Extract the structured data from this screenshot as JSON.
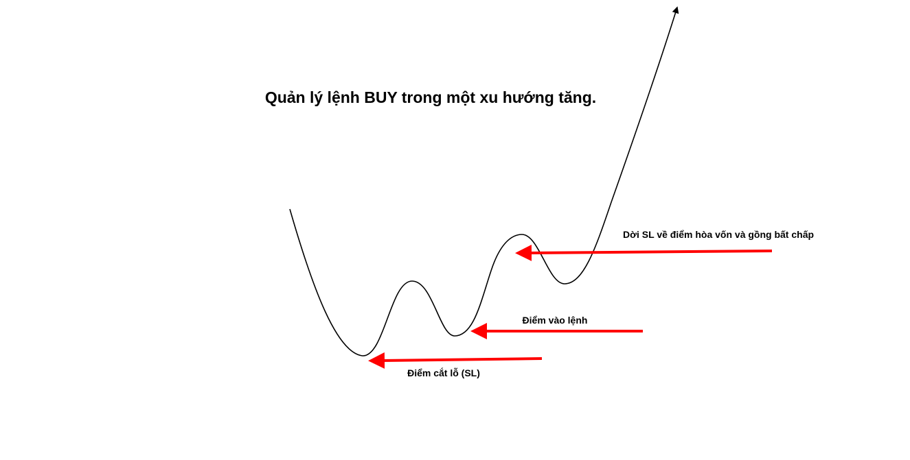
{
  "diagram": {
    "title": "Quản lý lệnh BUY trong một xu hướng tăng.",
    "labels": {
      "breakeven": "Dời SL về điểm hòa vốn và gồng bất chấp",
      "entry": "Điểm vào lệnh",
      "stop_loss": "Điểm cắt lỗ (SL)"
    },
    "colors": {
      "price_line": "#000000",
      "arrow": "#ff0000",
      "text": "#000000",
      "background": "#ffffff"
    }
  }
}
